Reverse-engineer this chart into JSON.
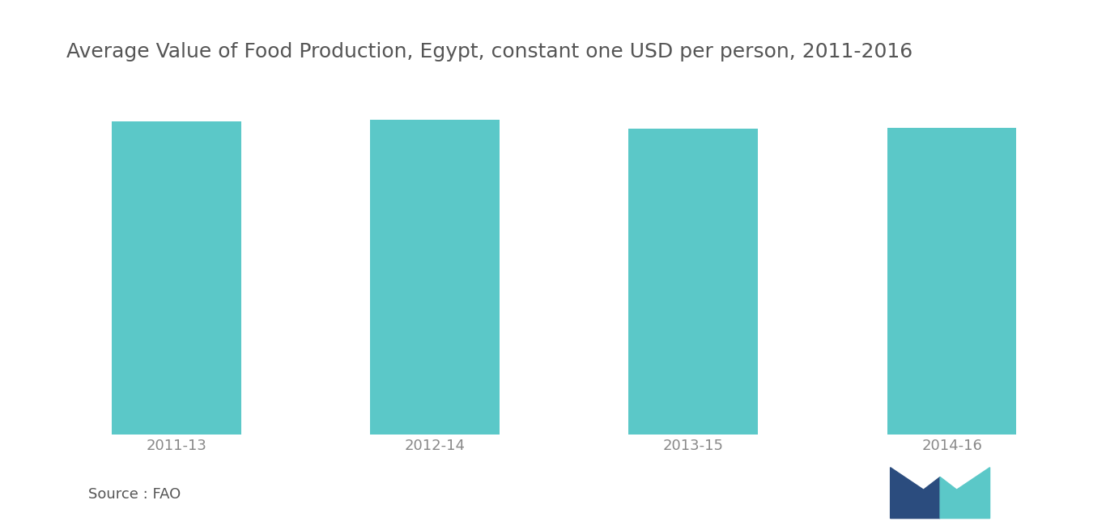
{
  "title": "Average Value of Food Production, Egypt, constant one USD per person, 2011-2016",
  "categories": [
    "2011-13",
    "2012-14",
    "2013-15",
    "2014-16"
  ],
  "values": [
    100,
    100.5,
    97.5,
    98.0
  ],
  "bar_color": "#5BC8C8",
  "background_color": "#ffffff",
  "title_fontsize": 18,
  "tick_fontsize": 13,
  "source_text": "Source : FAO",
  "source_fontsize": 13,
  "figsize": [
    13.66,
    6.55
  ],
  "dpi": 100,
  "ylim": [
    0,
    115
  ],
  "bar_width": 0.5,
  "title_color": "#555555",
  "tick_color": "#888888",
  "logo_left_color": "#2B4C7E",
  "logo_right_color": "#5BC8C8"
}
